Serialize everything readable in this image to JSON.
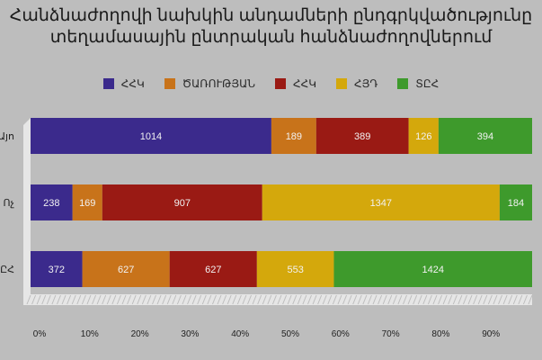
{
  "title": {
    "line1": "Հանձնաժողովի նախկին անդամների ընդգրկվածությունը",
    "line2": "տեղամասային ընտրական հանձնաժողովներում"
  },
  "chart_data": {
    "type": "bar",
    "orientation": "horizontal",
    "stacked": "percent",
    "categories": [
      "Այո",
      "Ոչ",
      "ՏԸՀ"
    ],
    "series": [
      {
        "name": "ՀՀԿ",
        "color": "#3b2a8c",
        "values": [
          1014,
          238,
          372
        ]
      },
      {
        "name": "ԾԱՌՈՒԹՅԱՆ",
        "color": "#c8731a",
        "values": [
          189,
          169,
          627
        ]
      },
      {
        "name": "ՀՀԿ",
        "color": "#9a1a14",
        "values": [
          389,
          907,
          627
        ]
      },
      {
        "name": "ՀՅԴ",
        "color": "#d4a80c",
        "values": [
          126,
          1347,
          553
        ]
      },
      {
        "name": "ՏԸՀ",
        "color": "#3e9a2c",
        "values": [
          394,
          184,
          1424
        ]
      }
    ],
    "xticks": [
      "0%",
      "10%",
      "20%",
      "30%",
      "40%",
      "50%",
      "60%",
      "70%",
      "80%",
      "90%"
    ],
    "xlim": [
      0,
      100
    ],
    "legend_position": "top",
    "background": "#bdbdbd",
    "floor_color": "#e6e6e6"
  }
}
